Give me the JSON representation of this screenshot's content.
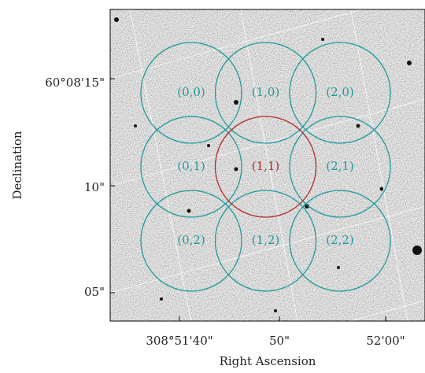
{
  "axes": {
    "xlabel": "Right Ascension",
    "ylabel": "Declination",
    "xtick_labels": [
      "308°51'40\"",
      "50\"",
      "52'00\""
    ],
    "ytick_labels": [
      "60°08'15\"",
      "10\"",
      "05\""
    ]
  },
  "apertures": [
    {
      "label": "(0,0)",
      "color": "#1f9a9a"
    },
    {
      "label": "(1,0)",
      "color": "#1f9a9a"
    },
    {
      "label": "(2,0)",
      "color": "#1f9a9a"
    },
    {
      "label": "(0,1)",
      "color": "#1f9a9a"
    },
    {
      "label": "(1,1)",
      "color": "#b22a2a"
    },
    {
      "label": "(2,1)",
      "color": "#1f9a9a"
    },
    {
      "label": "(0,2)",
      "color": "#1f9a9a"
    },
    {
      "label": "(1,2)",
      "color": "#1f9a9a"
    },
    {
      "label": "(2,2)",
      "color": "#1f9a9a"
    }
  ]
}
